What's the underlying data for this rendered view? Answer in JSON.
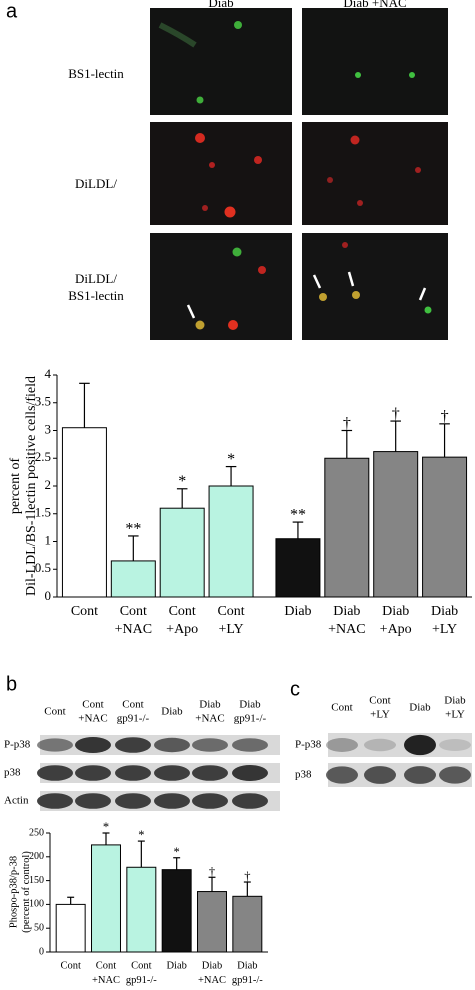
{
  "panel_labels": [
    "a",
    "b",
    "c"
  ],
  "panel_a": {
    "columns": [
      "Diab",
      "Diab +NAC"
    ],
    "rows": [
      [
        "BS1-lectin"
      ],
      [
        "DiLDL/"
      ],
      [
        "DiLDL/",
        "BS1-lectin"
      ]
    ]
  },
  "panel_b": {
    "columns": [
      [
        "Cont"
      ],
      [
        "Cont",
        "+NAC"
      ],
      [
        "Cont",
        "gp91-/-"
      ],
      [
        "Diab"
      ],
      [
        "Diab",
        "+NAC"
      ],
      [
        "Diab",
        "gp91-/-"
      ]
    ],
    "rows": [
      "P-p38",
      "p38",
      "Actin"
    ]
  },
  "panel_c": {
    "columns": [
      [
        "Cont"
      ],
      [
        "Cont",
        "+LY"
      ],
      [
        "Diab"
      ],
      [
        "Diab",
        "+LY"
      ]
    ],
    "rows": [
      "P-p38",
      "p38"
    ]
  },
  "chart_data": [
    {
      "type": "bar",
      "ylabel": [
        "percent of",
        "Dil-LDL/BS-1lectin positive cells/field"
      ],
      "categories": [
        [
          "Cont"
        ],
        [
          "Cont",
          "+NAC"
        ],
        [
          "Cont",
          "+Apo"
        ],
        [
          "Cont",
          "+LY"
        ],
        [
          "Diab"
        ],
        [
          "Diab",
          "+NAC"
        ],
        [
          "Diab",
          "+Apo"
        ],
        [
          "Diab",
          "+LY"
        ]
      ],
      "values": [
        3.05,
        0.65,
        1.6,
        2.0,
        1.05,
        2.5,
        2.62,
        2.52
      ],
      "errors": [
        0.8,
        0.45,
        0.35,
        0.35,
        0.3,
        0.5,
        0.55,
        0.6
      ],
      "colors": [
        "#ffffff",
        "#b9f3e1",
        "#b9f3e1",
        "#b9f3e1",
        "#111111",
        "#858585",
        "#858585",
        "#858585"
      ],
      "bar_labels": [
        null,
        "**",
        "*",
        "*",
        "**",
        "†",
        "†",
        "†"
      ],
      "ylim": [
        0,
        4
      ],
      "yticks": [
        0,
        0.5,
        1,
        1.5,
        2,
        2.5,
        3,
        3.5,
        4
      ]
    },
    {
      "type": "bar",
      "ylabel": [
        "Phospo-p38/p-38",
        "(percent of control)"
      ],
      "categories": [
        [
          "Cont"
        ],
        [
          "Cont",
          "+NAC"
        ],
        [
          "Cont",
          "gp91-/-"
        ],
        [
          "Diab"
        ],
        [
          "Diab",
          "+NAC"
        ],
        [
          "Diab",
          "gp91-/-"
        ]
      ],
      "values": [
        100,
        225,
        178,
        173,
        127,
        117
      ],
      "errors": [
        15,
        25,
        55,
        25,
        30,
        30
      ],
      "colors": [
        "#ffffff",
        "#b9f3e1",
        "#b9f3e1",
        "#111111",
        "#858585",
        "#858585"
      ],
      "bar_labels": [
        null,
        "*",
        "*",
        "*",
        "†",
        "†"
      ],
      "ylim": [
        0,
        250
      ],
      "yticks": [
        0,
        50,
        100,
        150,
        200,
        250
      ]
    }
  ]
}
